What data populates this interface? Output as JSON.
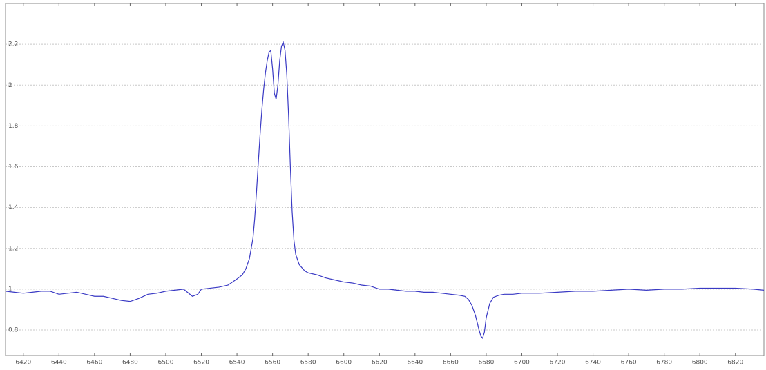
{
  "chart_data": {
    "type": "line",
    "grid": true,
    "xlim": [
      6410,
      6836
    ],
    "ylim": [
      0.675,
      2.4
    ],
    "xticks": [
      6420,
      6440,
      6460,
      6480,
      6500,
      6520,
      6540,
      6560,
      6580,
      6600,
      6620,
      6640,
      6660,
      6680,
      6700,
      6720,
      6740,
      6760,
      6780,
      6800,
      6820
    ],
    "yticks": [
      0.8,
      1,
      1.2,
      1.4,
      1.6,
      1.8,
      2,
      2.2
    ],
    "x": [
      6410,
      6415,
      6420,
      6425,
      6430,
      6435,
      6440,
      6445,
      6450,
      6455,
      6460,
      6465,
      6470,
      6475,
      6480,
      6485,
      6490,
      6495,
      6500,
      6505,
      6510,
      6515,
      6518,
      6520,
      6525,
      6530,
      6535,
      6540,
      6543,
      6545,
      6547,
      6549,
      6550,
      6551,
      6552,
      6553,
      6554,
      6555,
      6556,
      6557,
      6558,
      6559,
      6560,
      6561,
      6562,
      6563,
      6564,
      6565,
      6566,
      6567,
      6568,
      6569,
      6570,
      6571,
      6572,
      6573,
      6575,
      6578,
      6580,
      6585,
      6590,
      6595,
      6600,
      6605,
      6610,
      6615,
      6620,
      6625,
      6630,
      6635,
      6640,
      6645,
      6650,
      6655,
      6660,
      6665,
      6668,
      6670,
      6672,
      6674,
      6676,
      6677,
      6678,
      6679,
      6680,
      6682,
      6684,
      6687,
      6690,
      6695,
      6700,
      6710,
      6720,
      6730,
      6740,
      6750,
      6760,
      6770,
      6780,
      6790,
      6800,
      6810,
      6820,
      6830,
      6836
    ],
    "series": [
      {
        "color": "#3a3ac4",
        "values": [
          0.99,
          0.985,
          0.98,
          0.985,
          0.99,
          0.99,
          0.975,
          0.98,
          0.985,
          0.975,
          0.965,
          0.965,
          0.955,
          0.945,
          0.94,
          0.955,
          0.975,
          0.98,
          0.99,
          0.995,
          1.0,
          0.965,
          0.975,
          1.0,
          1.005,
          1.01,
          1.02,
          1.05,
          1.07,
          1.1,
          1.15,
          1.25,
          1.35,
          1.48,
          1.62,
          1.76,
          1.88,
          1.98,
          2.06,
          2.12,
          2.16,
          2.17,
          2.08,
          1.96,
          1.93,
          2.0,
          2.12,
          2.19,
          2.21,
          2.17,
          2.05,
          1.85,
          1.6,
          1.38,
          1.24,
          1.17,
          1.12,
          1.09,
          1.08,
          1.07,
          1.055,
          1.045,
          1.035,
          1.03,
          1.02,
          1.015,
          1.0,
          1.0,
          0.995,
          0.99,
          0.99,
          0.985,
          0.985,
          0.98,
          0.975,
          0.97,
          0.965,
          0.95,
          0.92,
          0.87,
          0.8,
          0.77,
          0.76,
          0.79,
          0.86,
          0.93,
          0.96,
          0.97,
          0.975,
          0.975,
          0.98,
          0.98,
          0.985,
          0.99,
          0.99,
          0.995,
          1.0,
          0.995,
          1.0,
          1.0,
          1.005,
          1.005,
          1.005,
          1.0,
          0.995
        ]
      }
    ]
  }
}
